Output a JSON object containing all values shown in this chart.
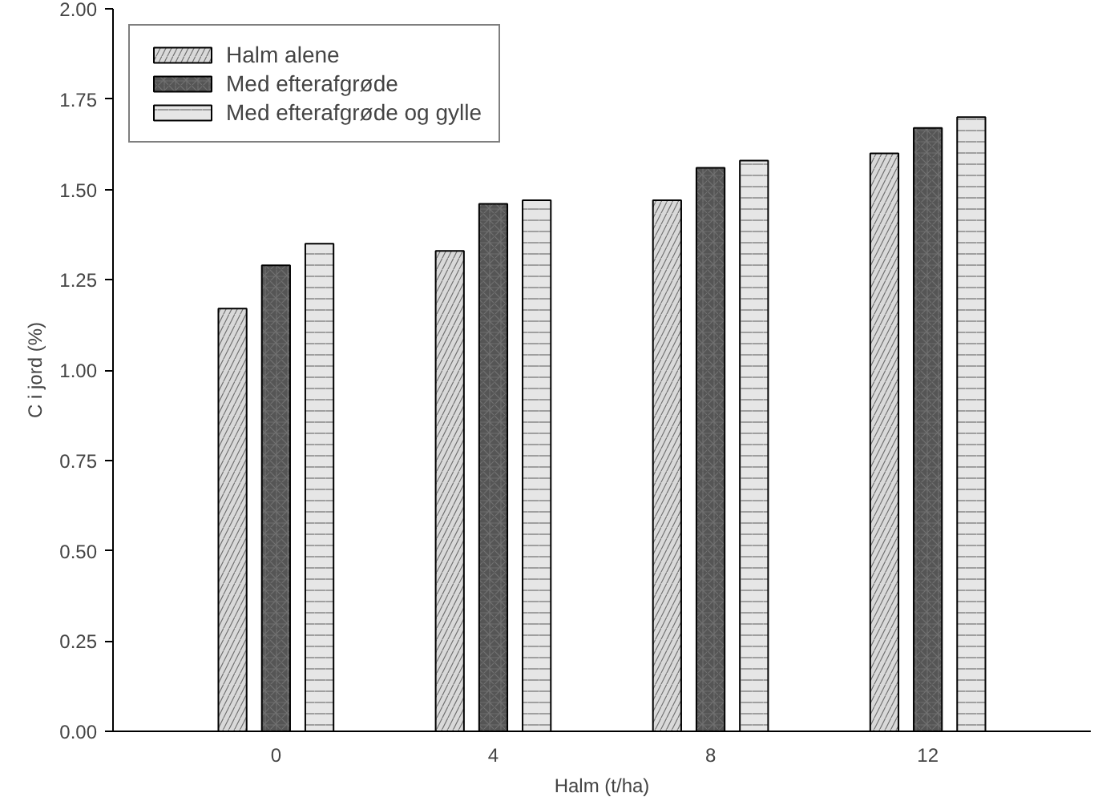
{
  "chart_data": {
    "type": "bar",
    "xlabel": "Halm (t/ha)",
    "ylabel": "C i jord (%)",
    "categories": [
      "0",
      "4",
      "8",
      "12"
    ],
    "series": [
      {
        "name": "Halm alene",
        "color": "#d9d9d9",
        "values": [
          1.17,
          1.33,
          1.47,
          1.6
        ]
      },
      {
        "name": "Med efterafgrøde",
        "color": "#555555",
        "values": [
          1.29,
          1.46,
          1.56,
          1.67
        ]
      },
      {
        "name": "Med efterafgrøde og gylle",
        "color": "#e6e6e6",
        "values": [
          1.35,
          1.47,
          1.58,
          1.7
        ]
      }
    ],
    "ylim": [
      0,
      2.0
    ],
    "yticks": [
      {
        "value": 0,
        "label": "0.00"
      },
      {
        "value": 0.25,
        "label": "0.25"
      },
      {
        "value": 0.5,
        "label": "0.50"
      },
      {
        "value": 0.75,
        "label": "0.75"
      },
      {
        "value": 1.0,
        "label": "1.00"
      },
      {
        "value": 1.25,
        "label": "1.25"
      },
      {
        "value": 1.5,
        "label": "1.50"
      },
      {
        "value": 1.75,
        "label": "1.75"
      },
      {
        "value": 2.0,
        "label": "2.00"
      }
    ],
    "grid": false,
    "legend": "top left"
  }
}
